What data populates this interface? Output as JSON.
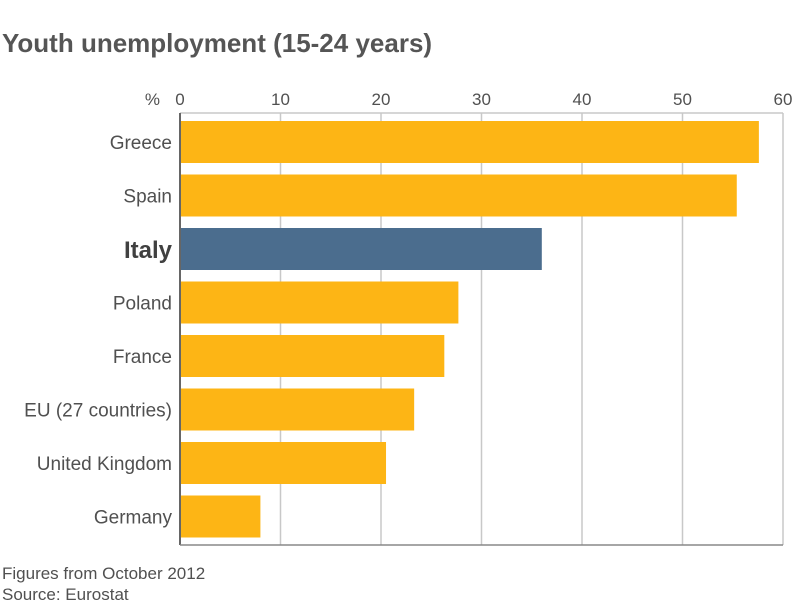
{
  "chart_data": {
    "type": "bar",
    "orientation": "horizontal",
    "title": "Youth unemployment (15-24 years)",
    "unit_label": "%",
    "categories": [
      "Greece",
      "Spain",
      "Italy",
      "Poland",
      "France",
      "EU (27 countries)",
      "United Kingdom",
      "Germany"
    ],
    "values": [
      57.6,
      55.4,
      36.0,
      27.7,
      26.3,
      23.3,
      20.5,
      8.0
    ],
    "highlight": "Italy",
    "xlim": [
      0,
      60
    ],
    "xticks": [
      0,
      10,
      20,
      30,
      40,
      50,
      60
    ],
    "grid": true,
    "colors": {
      "bar": "#FDB515",
      "highlight": "#4B6D8E",
      "grid": "#C8C8C8"
    },
    "notes": [
      "Figures from October 2012",
      "Source: Eurostat"
    ]
  }
}
